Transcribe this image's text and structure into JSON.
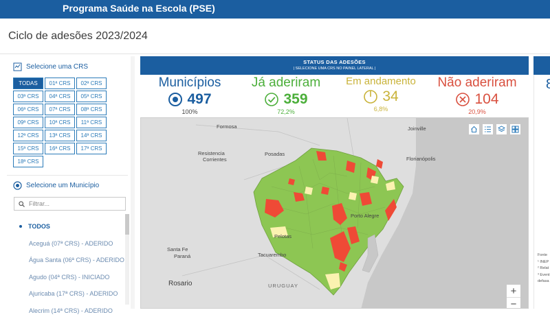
{
  "header": {
    "title": "Programa Saúde na Escola (PSE)"
  },
  "cycle_title": "Ciclo de adesões 2023/2024",
  "crs": {
    "title": "Selecione uma CRS",
    "items": [
      "TODAS",
      "01ª CRS",
      "02ª CRS",
      "03ª CRS",
      "04ª CRS",
      "05ª CRS",
      "06ª CRS",
      "07ª CRS",
      "08ª CRS",
      "09ª CRS",
      "10ª CRS",
      "11ª CRS",
      "12ª CRS",
      "13ª CRS",
      "14ª CRS",
      "15ª CRS",
      "16ª CRS",
      "17ª CRS",
      "18ª CRS"
    ],
    "selected": "TODAS"
  },
  "municipio": {
    "title": "Selecione um Município",
    "filter_placeholder": "Filtrar...",
    "all_label": "TODOS",
    "items": [
      "Aceguá (07ª CRS) - ADERIDO",
      "Água Santa (06ª CRS) - ADERIDO",
      "Agudo (04ª CRS) - INICIADO",
      "Ajuricaba (17ª CRS) - ADERIDO",
      "Alecrim (14ª CRS) - ADERIDO"
    ]
  },
  "status": {
    "title": "STATUS DAS ADESÕES",
    "subtitle": "| SELECIONE UMA CRS NO PAINEL LATERAL |"
  },
  "kpis": {
    "municipios": {
      "label": "Municípios",
      "value": "497",
      "pct": "100%",
      "color": "#1b5ea0"
    },
    "aderiram": {
      "label": "Já aderiram",
      "value": "359",
      "pct": "72,2%",
      "color": "#4caf3b"
    },
    "andamento": {
      "label": "Em andamento",
      "value": "34",
      "pct": "6,8%",
      "color": "#c9b33a"
    },
    "nao": {
      "label": "Não aderiram",
      "value": "104",
      "pct": "20,9%",
      "color": "#d9503f"
    }
  },
  "map": {
    "places": {
      "formosa": "Formosa",
      "resistencia": "Resistencia",
      "corrientes": "Corrientes",
      "posadas": "Posadas",
      "joinville": "Joinville",
      "florianopolis": "Florianópolis",
      "portoalegre": "Porto Alegre",
      "santafe": "Santa Fe",
      "parana": "Paraná",
      "tacuarembo": "Tacuarembo",
      "rosario": "Rosario",
      "uruguay": "URUGUAY",
      "pelotas": "Pelotas"
    },
    "colors": {
      "aderido": "#8dc653",
      "nao": "#ef4a36",
      "andamento": "#fbf2b0"
    }
  },
  "right_panel": {
    "partial_number": "8",
    "notes": [
      "Fonte",
      "¹ INEP",
      "² Relat",
      "³ Event",
      "defasa"
    ]
  }
}
